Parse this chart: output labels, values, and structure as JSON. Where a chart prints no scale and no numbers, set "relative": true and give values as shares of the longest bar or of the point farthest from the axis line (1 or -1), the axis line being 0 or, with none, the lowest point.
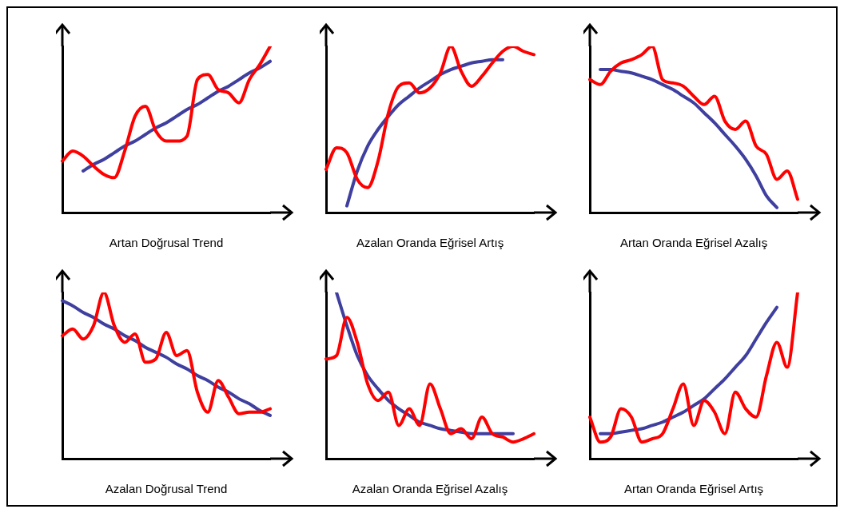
{
  "chart_data": [
    {
      "type": "line",
      "title": "Artan Doğrusal Trend",
      "relative": true,
      "grid": false,
      "legend": false,
      "marker": "none",
      "categories": [
        null,
        null,
        null,
        null,
        null,
        null,
        null,
        null,
        null,
        null,
        null,
        null,
        null,
        null,
        null,
        null,
        null,
        null,
        null,
        null,
        null
      ],
      "series": [
        {
          "color": "#ff0000",
          "values": [
            0.31,
            0.37,
            0.34,
            0.28,
            0.23,
            0.21,
            0.37,
            0.58,
            0.64,
            0.49,
            0.43,
            0.43,
            0.46,
            0.8,
            0.83,
            0.74,
            0.72,
            0.66,
            0.8,
            0.89,
            1
          ]
        },
        {
          "color": "#3f3f9f",
          "values": [
            null,
            null,
            0.25,
            0.29,
            0.32,
            0.36,
            0.4,
            0.43,
            0.47,
            0.51,
            0.54,
            0.58,
            0.62,
            0.65,
            0.69,
            0.73,
            0.76,
            0.8,
            0.84,
            0.87,
            0.91
          ]
        }
      ]
    },
    {
      "type": "line",
      "title": "Azalan Oranda Eğrisel Artış",
      "relative": true,
      "grid": false,
      "legend": false,
      "marker": "none",
      "categories": [
        null,
        null,
        null,
        null,
        null,
        null,
        null,
        null,
        null,
        null,
        null,
        null,
        null,
        null,
        null,
        null,
        null,
        null,
        null,
        null,
        null
      ],
      "series": [
        {
          "color": "#ff0000",
          "values": [
            0.26,
            0.39,
            0.36,
            0.2,
            0.15,
            0.31,
            0.6,
            0.76,
            0.78,
            0.72,
            0.75,
            0.84,
            1,
            0.85,
            0.76,
            0.82,
            0.9,
            0.97,
            1,
            0.97,
            0.95
          ]
        },
        {
          "color": "#3f3f9f",
          "values": [
            null,
            null,
            0.04,
            0.25,
            0.4,
            0.5,
            0.58,
            0.65,
            0.7,
            0.75,
            0.79,
            0.83,
            0.86,
            0.88,
            0.9,
            0.91,
            0.92,
            0.92,
            null,
            null,
            null
          ]
        }
      ]
    },
    {
      "type": "line",
      "title": "Artan Oranda Eğrisel Azalış",
      "relative": true,
      "grid": false,
      "legend": false,
      "marker": "none",
      "categories": [
        null,
        null,
        null,
        null,
        null,
        null,
        null,
        null,
        null,
        null,
        null,
        null,
        null,
        null,
        null,
        null,
        null,
        null,
        null,
        null,
        null
      ],
      "series": [
        {
          "color": "#ff0000",
          "values": [
            0.8,
            0.77,
            0.85,
            0.9,
            0.92,
            0.95,
            1,
            0.8,
            0.78,
            0.76,
            0.7,
            0.65,
            0.7,
            0.55,
            0.5,
            0.55,
            0.4,
            0.35,
            0.2,
            0.25,
            0.08
          ]
        },
        {
          "color": "#3f3f9f",
          "values": [
            null,
            0.86,
            0.86,
            0.85,
            0.84,
            0.82,
            0.8,
            0.77,
            0.74,
            0.7,
            0.66,
            0.6,
            0.54,
            0.47,
            0.4,
            0.32,
            0.22,
            0.1,
            0.03,
            null,
            null
          ]
        }
      ]
    },
    {
      "type": "line",
      "title": "Azalan Doğrusal Trend",
      "relative": true,
      "grid": false,
      "legend": false,
      "marker": "none",
      "categories": [
        null,
        null,
        null,
        null,
        null,
        null,
        null,
        null,
        null,
        null,
        null,
        null,
        null,
        null,
        null,
        null,
        null,
        null,
        null,
        null,
        null
      ],
      "series": [
        {
          "color": "#ff0000",
          "values": [
            0.74,
            0.78,
            0.72,
            0.8,
            1,
            0.8,
            0.7,
            0.75,
            0.58,
            0.6,
            0.76,
            0.62,
            0.65,
            0.4,
            0.28,
            0.47,
            0.37,
            0.27,
            0.28,
            0.28,
            0.3
          ]
        },
        {
          "color": "#3f3f9f",
          "values": [
            0.95,
            0.92,
            0.88,
            0.85,
            0.81,
            0.78,
            0.74,
            0.71,
            0.67,
            0.64,
            0.61,
            0.57,
            0.54,
            0.5,
            0.47,
            0.43,
            0.4,
            0.36,
            0.33,
            0.29,
            0.26
          ]
        }
      ]
    },
    {
      "type": "line",
      "title": "Azalan Oranda Eğrisel Azalış",
      "relative": true,
      "grid": false,
      "legend": false,
      "marker": "none",
      "categories": [
        null,
        null,
        null,
        null,
        null,
        null,
        null,
        null,
        null,
        null,
        null,
        null,
        null,
        null,
        null,
        null,
        null,
        null,
        null,
        null,
        null
      ],
      "series": [
        {
          "color": "#ff0000",
          "values": [
            0.6,
            0.62,
            0.85,
            0.7,
            0.45,
            0.35,
            0.4,
            0.2,
            0.3,
            0.2,
            0.45,
            0.3,
            0.15,
            0.18,
            0.12,
            0.25,
            0.15,
            0.13,
            0.1,
            0.12,
            0.15
          ]
        },
        {
          "color": "#3f3f9f",
          "values": [
            null,
            1,
            0.8,
            0.62,
            0.5,
            0.42,
            0.35,
            0.3,
            0.26,
            0.22,
            0.2,
            0.18,
            0.17,
            0.16,
            0.15,
            0.15,
            0.15,
            0.15,
            0.15,
            null,
            null
          ]
        }
      ]
    },
    {
      "type": "line",
      "title": "Artan Oranda Eğrisel Artış",
      "relative": true,
      "grid": false,
      "legend": false,
      "marker": "none",
      "categories": [
        null,
        null,
        null,
        null,
        null,
        null,
        null,
        null,
        null,
        null,
        null,
        null,
        null,
        null,
        null,
        null,
        null,
        null,
        null,
        null,
        null
      ],
      "series": [
        {
          "color": "#ff0000",
          "values": [
            0.25,
            0.1,
            0.13,
            0.3,
            0.25,
            0.1,
            0.12,
            0.15,
            0.3,
            0.45,
            0.2,
            0.35,
            0.28,
            0.15,
            0.4,
            0.3,
            0.25,
            0.5,
            0.7,
            0.55,
            1
          ]
        },
        {
          "color": "#3f3f9f",
          "values": [
            null,
            0.15,
            0.15,
            0.16,
            0.17,
            0.18,
            0.2,
            0.22,
            0.25,
            0.28,
            0.32,
            0.36,
            0.42,
            0.48,
            0.55,
            0.62,
            0.72,
            0.82,
            0.91,
            null,
            null
          ]
        }
      ]
    }
  ]
}
